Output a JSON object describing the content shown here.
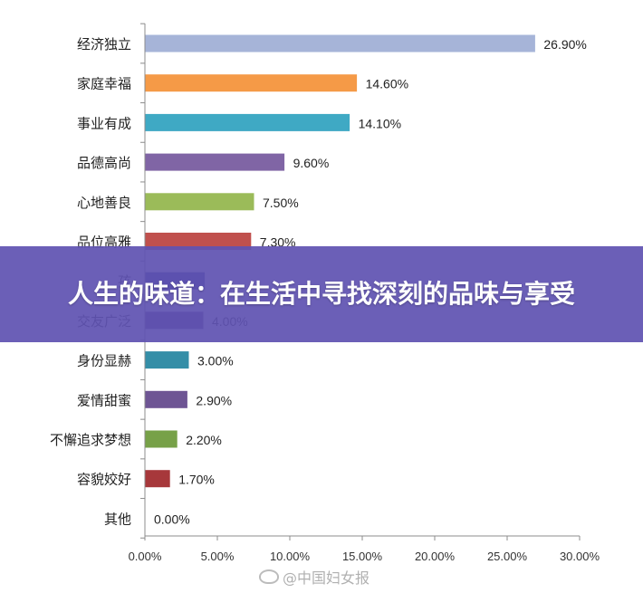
{
  "banner": {
    "title": "人生的味道：在生活中寻找深刻的品味与享受"
  },
  "watermark": {
    "text": "@中国妇女报",
    "icon": "weibo-icon"
  },
  "chart_data": {
    "type": "bar",
    "orientation": "horizontal",
    "categories": [
      "经济独立",
      "家庭幸福",
      "事业有成",
      "品德高尚",
      "心地善良",
      "品位高雅",
      "孩子优秀",
      "交友广泛",
      "身份显赫",
      "爱情甜蜜",
      "不懈追求梦想",
      "容貌姣好",
      "其他"
    ],
    "category_labels_visible": [
      "经济独立",
      "家庭幸福",
      "事业有成",
      "品德高尚",
      "心地善良",
      "品位高雅",
      "孩",
      "交友广泛",
      "身份显赫",
      "爱情甜蜜",
      "不懈追求梦想",
      "容貌姣好",
      "其他"
    ],
    "values": [
      26.9,
      14.6,
      14.1,
      9.6,
      7.5,
      7.3,
      4.1,
      4.0,
      3.0,
      2.9,
      2.2,
      1.7,
      0.0
    ],
    "data_labels": [
      "26.90%",
      "14.60%",
      "14.10%",
      "9.60%",
      "7.50%",
      "7.30%",
      "",
      "4.00%",
      "3.00%",
      "2.90%",
      "2.20%",
      "1.70%",
      "0.00%"
    ],
    "colors": [
      "#a6b4d8",
      "#f59a47",
      "#3fa9c4",
      "#8065a5",
      "#9bbb59",
      "#c0504d",
      "#2b3d90",
      "#5d3a80",
      "#348ea7",
      "#6e5594",
      "#77a148",
      "#a7383b",
      "#cccccc"
    ],
    "x_ticks": [
      "0.00%",
      "5.00%",
      "10.00%",
      "15.00%",
      "20.00%",
      "25.00%",
      "30.00%"
    ],
    "xlim": [
      0,
      30
    ],
    "title": "",
    "xlabel": "",
    "ylabel": "",
    "grid": false,
    "legend": "none"
  }
}
